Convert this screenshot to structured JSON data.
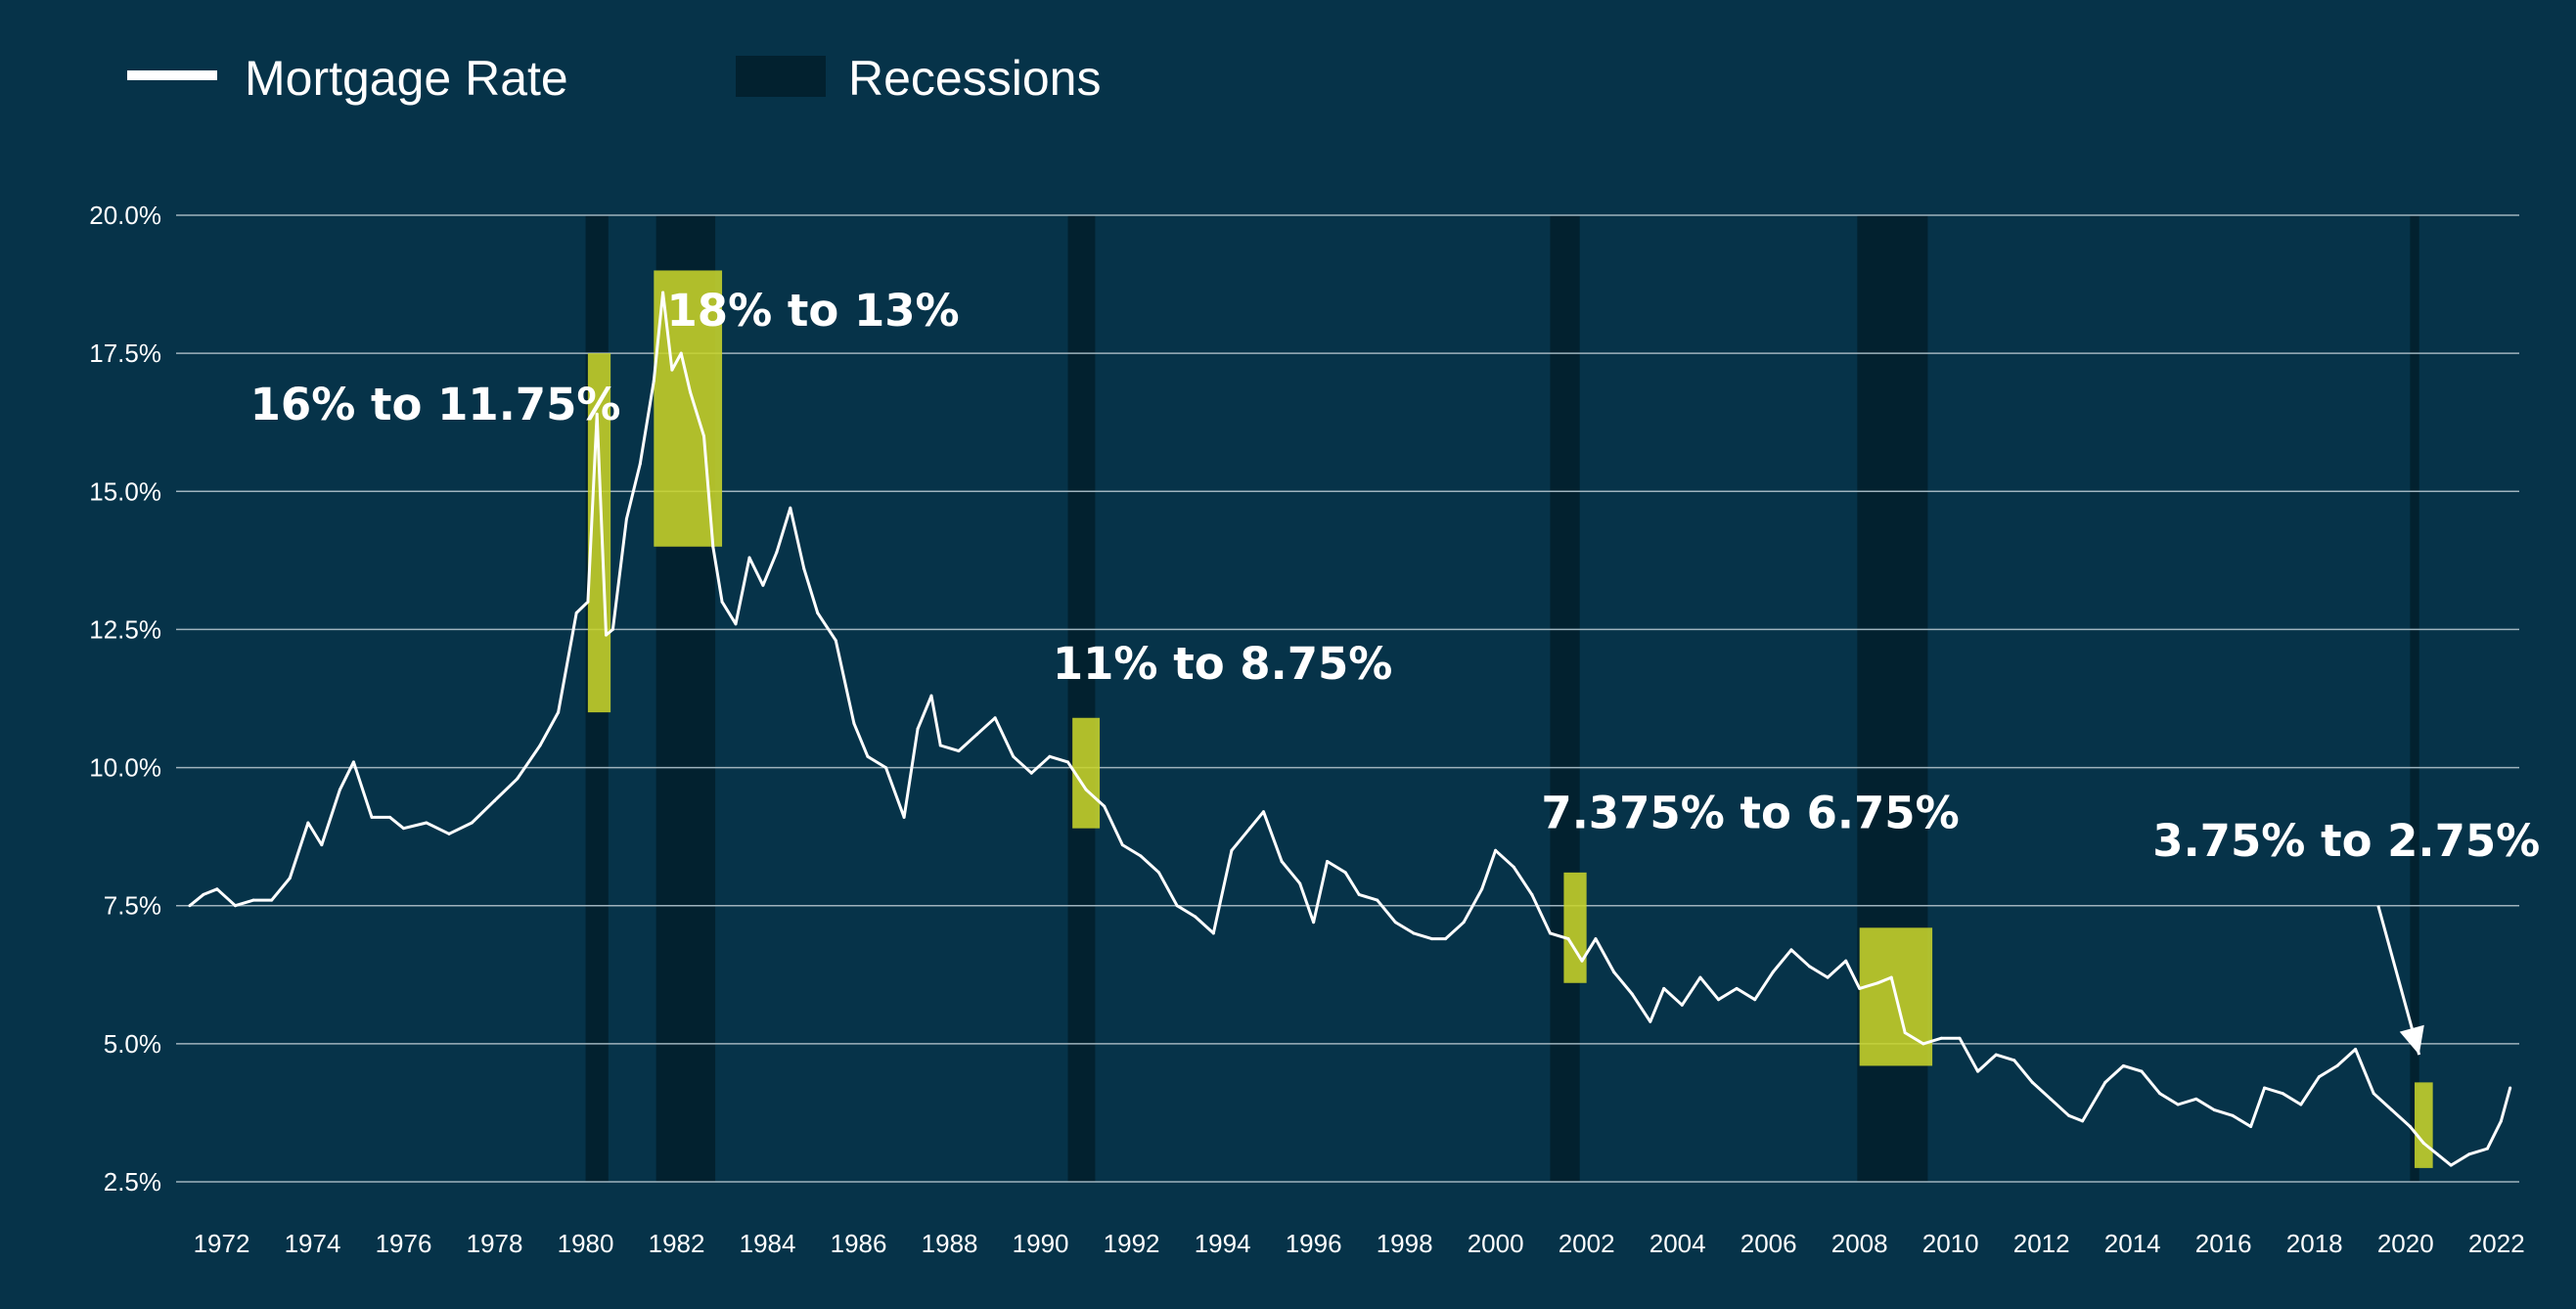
{
  "chart_data": {
    "type": "line",
    "title": "",
    "xlabel": "",
    "ylabel": "",
    "xlim": [
      1971.0,
      2022.5
    ],
    "ylim": [
      2.5,
      20.0
    ],
    "y_ticks": [
      {
        "v": 2.5,
        "label": "2.5%"
      },
      {
        "v": 5.0,
        "label": "5.0%"
      },
      {
        "v": 7.5,
        "label": "7.5%"
      },
      {
        "v": 10.0,
        "label": "10.0%"
      },
      {
        "v": 12.5,
        "label": "12.5%"
      },
      {
        "v": 15.0,
        "label": "15.0%"
      },
      {
        "v": 17.5,
        "label": "17.5%"
      },
      {
        "v": 20.0,
        "label": "20.0%"
      }
    ],
    "x_ticks": [
      "1972",
      "1974",
      "1976",
      "1978",
      "1980",
      "1982",
      "1984",
      "1986",
      "1988",
      "1990",
      "1992",
      "1994",
      "1996",
      "1998",
      "2000",
      "2002",
      "2004",
      "2006",
      "2008",
      "2010",
      "2012",
      "2014",
      "2016",
      "2018",
      "2020",
      "2022"
    ],
    "grid": "horizontal",
    "legend_placement": "top-left",
    "legend": {
      "line_label": "Mortgage Rate",
      "recession_label": "Recessions"
    },
    "series": [
      {
        "name": "Mortgage Rate",
        "color": "#ffffff",
        "x": [
          1971.3,
          1971.6,
          1971.9,
          1972.3,
          1972.7,
          1973.1,
          1973.5,
          1973.9,
          1974.2,
          1974.6,
          1974.9,
          1975.3,
          1975.7,
          1976.0,
          1976.5,
          1977.0,
          1977.5,
          1978.0,
          1978.5,
          1979.0,
          1979.4,
          1979.8,
          1980.05,
          1980.25,
          1980.45,
          1980.6,
          1980.9,
          1981.2,
          1981.5,
          1981.7,
          1981.9,
          1982.1,
          1982.3,
          1982.6,
          1982.8,
          1983.0,
          1983.3,
          1983.6,
          1983.9,
          1984.2,
          1984.5,
          1984.8,
          1985.1,
          1985.5,
          1985.9,
          1986.2,
          1986.6,
          1987.0,
          1987.3,
          1987.6,
          1987.8,
          1988.2,
          1988.6,
          1989.0,
          1989.4,
          1989.8,
          1990.2,
          1990.6,
          1991.0,
          1991.4,
          1991.8,
          1992.2,
          1992.6,
          1993.0,
          1993.4,
          1993.8,
          1994.2,
          1994.6,
          1994.9,
          1995.3,
          1995.7,
          1996.0,
          1996.3,
          1996.7,
          1997.0,
          1997.4,
          1997.8,
          1998.2,
          1998.6,
          1998.9,
          1999.3,
          1999.7,
          2000.0,
          2000.4,
          2000.8,
          2001.2,
          2001.6,
          2001.9,
          2002.2,
          2002.6,
          2003.0,
          2003.4,
          2003.7,
          2004.1,
          2004.5,
          2004.9,
          2005.3,
          2005.7,
          2006.1,
          2006.5,
          2006.9,
          2007.3,
          2007.7,
          2008.0,
          2008.4,
          2008.7,
          2009.0,
          2009.4,
          2009.8,
          2010.2,
          2010.6,
          2011.0,
          2011.4,
          2011.8,
          2012.2,
          2012.6,
          2012.9,
          2013.4,
          2013.8,
          2014.2,
          2014.6,
          2015.0,
          2015.4,
          2015.8,
          2016.2,
          2016.6,
          2016.9,
          2017.3,
          2017.7,
          2018.1,
          2018.5,
          2018.9,
          2019.3,
          2019.7,
          2020.1,
          2020.4,
          2020.7,
          2021.0,
          2021.4,
          2021.8,
          2022.1,
          2022.3
        ],
        "y": [
          7.5,
          7.7,
          7.8,
          7.5,
          7.6,
          7.6,
          8.0,
          9.0,
          8.6,
          9.6,
          10.1,
          9.1,
          9.1,
          8.9,
          9.0,
          8.8,
          9.0,
          9.4,
          9.8,
          10.4,
          11.0,
          12.8,
          13.0,
          16.4,
          12.4,
          12.5,
          14.5,
          15.5,
          17.0,
          18.6,
          17.2,
          17.5,
          16.8,
          16.0,
          14.0,
          13.0,
          12.6,
          13.8,
          13.3,
          13.9,
          14.7,
          13.6,
          12.8,
          12.3,
          10.8,
          10.2,
          10.0,
          9.1,
          10.7,
          11.3,
          10.4,
          10.3,
          10.6,
          10.9,
          10.2,
          9.9,
          10.2,
          10.1,
          9.6,
          9.3,
          8.6,
          8.4,
          8.1,
          7.5,
          7.3,
          7.0,
          8.5,
          8.9,
          9.2,
          8.3,
          7.9,
          7.2,
          8.3,
          8.1,
          7.7,
          7.6,
          7.2,
          7.0,
          6.9,
          6.9,
          7.2,
          7.8,
          8.5,
          8.2,
          7.7,
          7.0,
          6.9,
          6.5,
          6.9,
          6.3,
          5.9,
          5.4,
          6.0,
          5.7,
          6.2,
          5.8,
          6.0,
          5.8,
          6.3,
          6.7,
          6.4,
          6.2,
          6.5,
          6.0,
          6.1,
          6.2,
          5.2,
          5.0,
          5.1,
          5.1,
          4.5,
          4.8,
          4.7,
          4.3,
          4.0,
          3.7,
          3.6,
          4.3,
          4.6,
          4.5,
          4.1,
          3.9,
          4.0,
          3.8,
          3.7,
          3.5,
          4.2,
          4.1,
          3.9,
          4.4,
          4.6,
          4.9,
          4.1,
          3.8,
          3.5,
          3.2,
          3.0,
          2.8,
          3.0,
          3.1,
          3.6,
          4.2
        ]
      }
    ],
    "recessions": [
      [
        1980.0,
        1980.5
      ],
      [
        1981.55,
        1982.85
      ],
      [
        1990.6,
        1991.2
      ],
      [
        2001.2,
        2001.85
      ],
      [
        2007.95,
        2009.5
      ],
      [
        2020.1,
        2020.3
      ]
    ],
    "highlights": [
      {
        "x0": 1980.05,
        "x1": 1980.55,
        "y0": 11.0,
        "y1": 17.5
      },
      {
        "x0": 1981.5,
        "x1": 1983.0,
        "y0": 14.0,
        "y1": 19.0
      },
      {
        "x0": 1990.7,
        "x1": 1991.3,
        "y0": 8.9,
        "y1": 10.9
      },
      {
        "x0": 2001.5,
        "x1": 2002.0,
        "y0": 6.1,
        "y1": 8.1
      },
      {
        "x0": 2008.0,
        "x1": 2009.6,
        "y0": 4.6,
        "y1": 7.1
      },
      {
        "x0": 2020.2,
        "x1": 2020.6,
        "y0": 2.75,
        "y1": 4.3
      }
    ],
    "annotations": [
      {
        "text": "16% to 11.75%",
        "x": 1976.7,
        "y": 16.3
      },
      {
        "text": "18% to 13%",
        "x": 1985.0,
        "y": 18.0
      },
      {
        "text": "11% to 8.75%",
        "x": 1994.0,
        "y": 11.6
      },
      {
        "text": "7.375% to 6.75%",
        "x": 2005.6,
        "y": 8.9
      },
      {
        "text": "3.75% to 2.75%",
        "x": 2018.7,
        "y": 8.4
      }
    ],
    "arrow": {
      "from_x": 2019.4,
      "from_y": 7.5,
      "to_x": 2020.3,
      "to_y": 4.8
    },
    "colors": {
      "background": "#063349",
      "recession": "#02212f",
      "highlight": "#c8d42b",
      "line": "#ffffff",
      "grid": "#9fb3bd"
    }
  }
}
